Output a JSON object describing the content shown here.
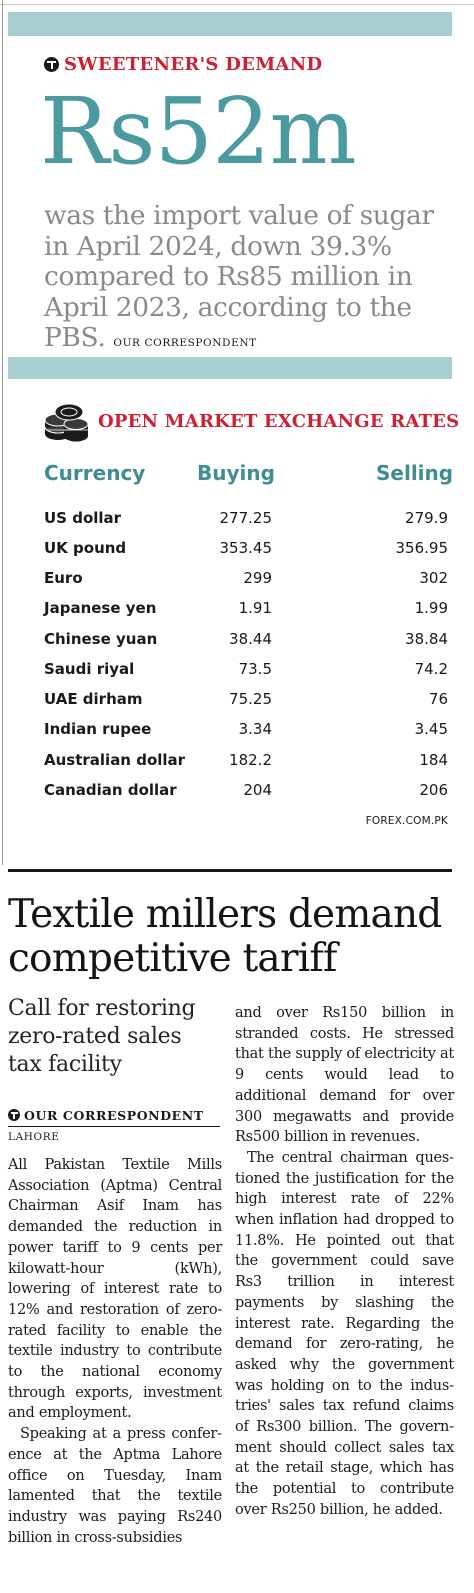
{
  "stat_box": {
    "kicker": "SWEETENER'S DEMAND",
    "big_number": "Rs52m",
    "description": "was the import value of sugar in April 2024, down 39.3% compared to Rs85 million in April 2023, according to the PBS.",
    "byline": "OUR CORRESPONDENT"
  },
  "exchange": {
    "kicker": "OPEN MARKET EXCHANGE RATES",
    "headers": {
      "currency": "Currency",
      "buying": "Buying",
      "selling": "Selling"
    },
    "rows": [
      {
        "currency": "US dollar",
        "buying": "277.25",
        "selling": "279.9"
      },
      {
        "currency": "UK pound",
        "buying": "353.45",
        "selling": "356.95"
      },
      {
        "currency": "Euro",
        "buying": "299",
        "selling": "302"
      },
      {
        "currency": "Japanese yen",
        "buying": "1.91",
        "selling": "1.99"
      },
      {
        "currency": "Chinese yuan",
        "buying": "38.44",
        "selling": "38.84"
      },
      {
        "currency": "Saudi riyal",
        "buying": "73.5",
        "selling": "74.2"
      },
      {
        "currency": "UAE dirham",
        "buying": "75.25",
        "selling": "76"
      },
      {
        "currency": "Indian rupee",
        "buying": "3.34",
        "selling": "3.45"
      },
      {
        "currency": "Australian dollar",
        "buying": "182.2",
        "selling": "184"
      },
      {
        "currency": "Canadian dollar",
        "buying": "204",
        "selling": "206"
      }
    ],
    "source": "FOREX.COM.PK"
  },
  "article": {
    "headline": "Textile millers demand competitive tariff",
    "deck": "Call for restoring zero-rated sales tax facility",
    "byline": "OUR CORRESPONDENT",
    "dateline": "LAHORE",
    "left_paragraphs": [
      "All Pakistan Textile Mills Association (Aptma) Central Chairman Asif Inam has demanded the reduction in power tariff to 9 cents per kilo­watt-hour (kWh), lowering of interest rate to 12% and resto­ration of zero-rated facility to enable the textile industry to contribute to the national economy through exports, investment and employment.",
      "Speaking at a press confer­ence at the Aptma Lahore office on Tuesday, Inam lamented that the textile industry was paying Rs240 billion in cross-subsidies"
    ],
    "right_paragraphs": [
      "and over Rs150 billion in stranded costs. He stressed that the supply of electric­ity at 9 cents would lead to additional demand for over 300 megawatts and provide Rs500 billion in revenues.",
      "The central chairman ques­tioned the justification for the high interest rate of 22% when inflation had dropped to 11.8%. He pointed out that the government could save Rs3 trillion in interest payments by slashing the interest rate. Regarding the demand for zero-rating, he asked why the government was holding on to the indus­tries' sales tax refund claims of Rs300 billion. The govern­ment should collect sales tax at the retail stage, which has the potential to contribute over Rs250 billion, he added."
    ]
  },
  "colors": {
    "accent_red": "#cf2033",
    "teal": "#4a9aa0",
    "band": "#a7cfd2",
    "grey_text": "#8a8a8a"
  },
  "icons": [
    "newspaper-t-logo-icon",
    "coin-stack-icon"
  ]
}
